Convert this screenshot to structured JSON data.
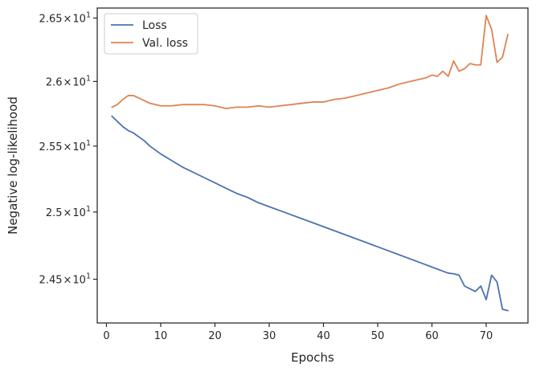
{
  "chart_data": {
    "type": "line",
    "title": "",
    "xlabel": "Epochs",
    "ylabel": "Negative log-likelihood",
    "xlim": [
      -1.7,
      77.7
    ],
    "ylim": [
      24.18,
      26.58
    ],
    "yscale": "log",
    "grid": false,
    "legend_position": "top-left",
    "xticks": [
      {
        "value": 0,
        "label": "0"
      },
      {
        "value": 10,
        "label": "10"
      },
      {
        "value": 20,
        "label": "20"
      },
      {
        "value": 30,
        "label": "30"
      },
      {
        "value": 40,
        "label": "40"
      },
      {
        "value": 50,
        "label": "50"
      },
      {
        "value": 60,
        "label": "60"
      },
      {
        "value": 70,
        "label": "70"
      }
    ],
    "yticks": [
      {
        "value": 24.5,
        "mantissa": "2.45",
        "sep": "×",
        "base": "10",
        "exp": "1"
      },
      {
        "value": 25.0,
        "mantissa": "2.5",
        "sep": "×",
        "base": "10",
        "exp": "1"
      },
      {
        "value": 25.5,
        "mantissa": "2.55",
        "sep": "×",
        "base": "10",
        "exp": "1"
      },
      {
        "value": 26.0,
        "mantissa": "2.6",
        "sep": "×",
        "base": "10",
        "exp": "1"
      },
      {
        "value": 26.5,
        "mantissa": "2.65",
        "sep": "×",
        "base": "10",
        "exp": "1"
      }
    ],
    "series": [
      {
        "name": "Loss",
        "color": "#4c72b0",
        "x": [
          1,
          2,
          3,
          4,
          5,
          6,
          7,
          8,
          9,
          10,
          12,
          14,
          16,
          18,
          20,
          22,
          24,
          26,
          28,
          30,
          32,
          34,
          36,
          38,
          40,
          42,
          44,
          46,
          48,
          50,
          52,
          54,
          56,
          58,
          60,
          62,
          63,
          64,
          65,
          66,
          67,
          68,
          69,
          70,
          71,
          72,
          73,
          74
        ],
        "y": [
          25.73,
          25.69,
          25.65,
          25.62,
          25.6,
          25.57,
          25.54,
          25.5,
          25.47,
          25.44,
          25.39,
          25.34,
          25.3,
          25.26,
          25.22,
          25.18,
          25.14,
          25.11,
          25.07,
          25.04,
          25.01,
          24.98,
          24.95,
          24.92,
          24.89,
          24.86,
          24.83,
          24.8,
          24.77,
          24.74,
          24.71,
          24.68,
          24.65,
          24.62,
          24.59,
          24.56,
          24.545,
          24.54,
          24.53,
          24.45,
          24.43,
          24.41,
          24.45,
          24.35,
          24.53,
          24.48,
          24.28,
          24.27
        ]
      },
      {
        "name": "Val. loss",
        "color": "#dd8452",
        "x": [
          1,
          2,
          3,
          4,
          5,
          6,
          7,
          8,
          9,
          10,
          12,
          14,
          16,
          18,
          20,
          22,
          24,
          26,
          28,
          30,
          32,
          34,
          36,
          38,
          40,
          42,
          44,
          46,
          48,
          50,
          52,
          54,
          56,
          58,
          59,
          60,
          61,
          62,
          63,
          64,
          65,
          66,
          67,
          68,
          69,
          70,
          71,
          72,
          73,
          74
        ],
        "y": [
          25.8,
          25.82,
          25.86,
          25.89,
          25.89,
          25.87,
          25.85,
          25.83,
          25.82,
          25.81,
          25.81,
          25.82,
          25.82,
          25.82,
          25.81,
          25.79,
          25.8,
          25.8,
          25.81,
          25.8,
          25.81,
          25.82,
          25.83,
          25.84,
          25.84,
          25.86,
          25.87,
          25.89,
          25.91,
          25.93,
          25.95,
          25.98,
          26.0,
          26.02,
          26.03,
          26.05,
          26.04,
          26.08,
          26.04,
          26.16,
          26.08,
          26.1,
          26.14,
          26.13,
          26.13,
          26.52,
          26.41,
          26.15,
          26.19,
          26.37
        ]
      }
    ]
  }
}
